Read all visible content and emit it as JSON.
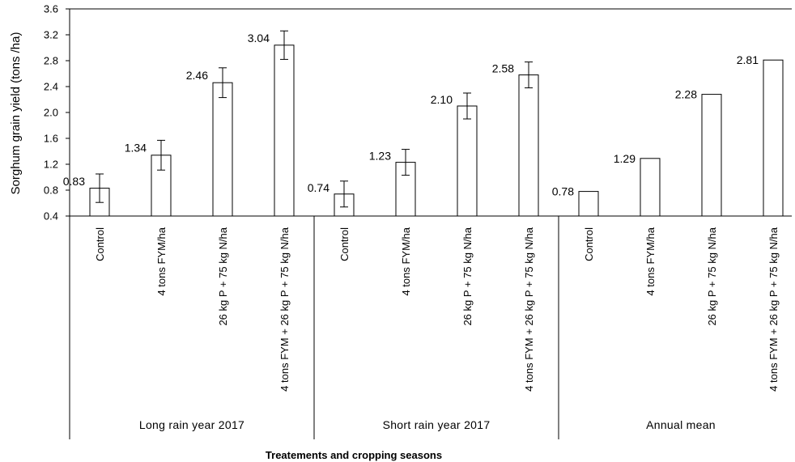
{
  "chart_data": {
    "type": "bar",
    "ylabel": "Sorghum grain yield (tons /ha)",
    "xlabel": "Treatements and cropping seasons",
    "ylim": [
      0.4,
      3.6
    ],
    "yticks": [
      "0.4",
      "0.8",
      "1.2",
      "1.6",
      "2.0",
      "2.4",
      "2.8",
      "3.2",
      "3.6"
    ],
    "grid": false,
    "groups": [
      {
        "name": "Long rain year 2017",
        "bars": [
          {
            "category": "Control",
            "value": 0.83,
            "label": "0.83",
            "error": 0.22
          },
          {
            "category": "4 tons FYM/ha",
            "value": 1.34,
            "label": "1.34",
            "error": 0.23
          },
          {
            "category": "26 kg P + 75 kg N/ha",
            "value": 2.46,
            "label": "2.46",
            "error": 0.23
          },
          {
            "category": "4 tons FYM + 26 kg P + 75 kg N/ha",
            "value": 3.04,
            "label": "3.04",
            "error": 0.22
          }
        ]
      },
      {
        "name": "Short rain year 2017",
        "bars": [
          {
            "category": "Control",
            "value": 0.74,
            "label": "0.74",
            "error": 0.2
          },
          {
            "category": "4 tons FYM/ha",
            "value": 1.23,
            "label": "1.23",
            "error": 0.2
          },
          {
            "category": "26 kg P + 75 kg N/ha",
            "value": 2.1,
            "label": "2.10",
            "error": 0.2
          },
          {
            "category": "4 tons FYM + 26 kg P + 75 kg N/ha",
            "value": 2.58,
            "label": "2.58",
            "error": 0.2
          }
        ]
      },
      {
        "name": "Annual mean",
        "bars": [
          {
            "category": "Control",
            "value": 0.78,
            "label": "0.78",
            "error": null
          },
          {
            "category": "4 tons FYM/ha",
            "value": 1.29,
            "label": "1.29",
            "error": null
          },
          {
            "category": "26 kg P + 75 kg N/ha",
            "value": 2.28,
            "label": "2.28",
            "error": null
          },
          {
            "category": "4 tons FYM + 26 kg P + 75 kg N/ha",
            "value": 2.81,
            "label": "2.81",
            "error": null
          }
        ]
      }
    ]
  }
}
